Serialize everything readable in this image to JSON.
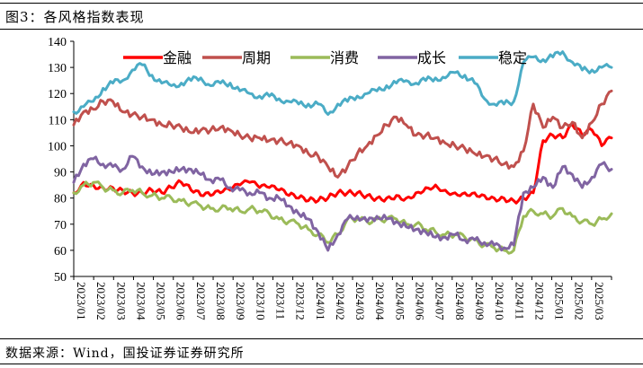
{
  "figure": {
    "title": "图3：各风格指数表现",
    "source": "数据来源：Wind，国投证券证券研究所"
  },
  "chart_data": {
    "type": "line",
    "title": "",
    "xlabel": "",
    "ylabel": "",
    "ylim": [
      50,
      140
    ],
    "yticks": [
      50,
      60,
      70,
      80,
      90,
      100,
      110,
      120,
      130,
      140
    ],
    "grid": false,
    "legend_position": "top",
    "x_tick_labels": [
      "2023/01",
      "2023/02",
      "2023/03",
      "2023/04",
      "2023/05",
      "2023/06",
      "2023/07",
      "2023/08",
      "2023/09",
      "2023/10",
      "2023/11",
      "2023/12",
      "2024/01",
      "2024/02",
      "2024/03",
      "2024/04",
      "2024/05",
      "2024/06",
      "2024/07",
      "2024/08",
      "2024/09",
      "2024/10",
      "2024/11",
      "2024/12",
      "2025/01",
      "2025/02",
      "2025/03"
    ],
    "x_months": [
      0,
      1,
      2,
      3,
      4,
      5,
      6,
      7,
      8,
      9,
      10,
      11,
      12,
      13,
      14,
      15,
      16,
      17,
      18,
      19,
      20,
      21,
      22,
      23,
      24,
      25,
      26,
      27,
      28,
      29,
      30,
      31,
      32,
      33,
      34,
      35,
      36,
      37,
      38,
      39,
      40,
      41,
      42,
      43,
      44,
      45,
      46,
      47,
      48,
      49,
      50,
      51,
      52,
      53,
      54,
      55
    ],
    "series": [
      {
        "name": "金融",
        "color": "#ff0000",
        "values": [
          82,
          86,
          85,
          84,
          84,
          83,
          82,
          82,
          83,
          82,
          84,
          86,
          83,
          81,
          81,
          82,
          83,
          85,
          86,
          84,
          84,
          83,
          81,
          80,
          79,
          79,
          80,
          82,
          82,
          82,
          81,
          80,
          80,
          81,
          80,
          82,
          84,
          85,
          83,
          82,
          82,
          82,
          81,
          80,
          80,
          79,
          80,
          82,
          102,
          104,
          103,
          108,
          104,
          106,
          100,
          103
        ]
      },
      {
        "name": "周期",
        "color": "#c0504d",
        "values": [
          108,
          113,
          114,
          117,
          117,
          113,
          112,
          111,
          110,
          108,
          108,
          107,
          105,
          106,
          106,
          107,
          106,
          104,
          103,
          103,
          102,
          102,
          101,
          100,
          97,
          96,
          92,
          88,
          92,
          97,
          100,
          104,
          108,
          111,
          108,
          104,
          104,
          103,
          101,
          100,
          99,
          97,
          96,
          95,
          93,
          92,
          98,
          116,
          107,
          111,
          107,
          109,
          103,
          109,
          116,
          121
        ]
      },
      {
        "name": "消费",
        "color": "#9bbb59",
        "values": [
          82,
          85,
          86,
          84,
          83,
          82,
          83,
          82,
          81,
          80,
          80,
          79,
          78,
          77,
          76,
          76,
          76,
          75,
          76,
          75,
          74,
          72,
          71,
          70,
          68,
          66,
          63,
          66,
          72,
          72,
          71,
          72,
          72,
          72,
          70,
          70,
          68,
          67,
          66,
          66,
          65,
          64,
          62,
          61,
          60,
          60,
          73,
          75,
          74,
          73,
          76,
          73,
          71,
          70,
          72,
          74
        ]
      },
      {
        "name": "成长",
        "color": "#8064a2",
        "values": [
          86,
          93,
          95,
          93,
          92,
          91,
          96,
          92,
          89,
          90,
          90,
          91,
          91,
          89,
          87,
          87,
          84,
          83,
          82,
          82,
          80,
          80,
          77,
          74,
          72,
          67,
          60,
          66,
          72,
          73,
          71,
          73,
          72,
          71,
          69,
          68,
          67,
          65,
          65,
          66,
          64,
          64,
          63,
          62,
          61,
          62,
          82,
          84,
          88,
          84,
          92,
          89,
          84,
          88,
          93,
          91
        ]
      },
      {
        "name": "稳定",
        "color": "#4bacc6",
        "values": [
          113,
          115,
          117,
          122,
          124,
          125,
          129,
          131,
          127,
          124,
          123,
          124,
          125,
          126,
          123,
          124,
          124,
          121,
          120,
          119,
          119,
          118,
          117,
          116,
          116,
          116,
          112,
          116,
          117,
          119,
          120,
          121,
          123,
          124,
          125,
          124,
          125,
          126,
          126,
          128,
          127,
          124,
          118,
          116,
          116,
          117,
          132,
          134,
          133,
          134,
          136,
          132,
          129,
          129,
          130,
          130
        ]
      }
    ]
  }
}
